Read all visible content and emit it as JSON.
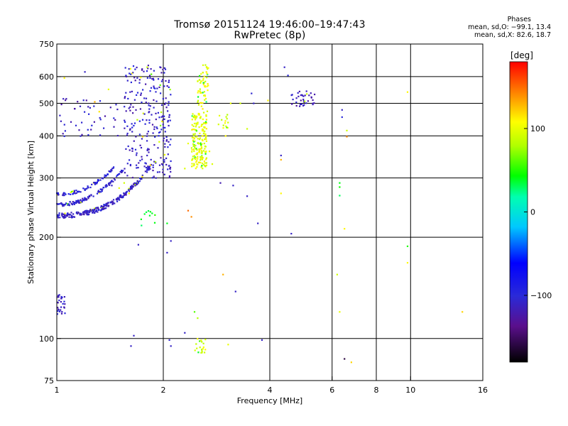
{
  "title": {
    "line1": "Tromsø 20151124 19:46:00–19:47:43",
    "line2": "RwPretec (8p)"
  },
  "phases": {
    "title": "Phases",
    "line_o": "mean, sd,O: −99.1, 13.4",
    "line_x": "mean, sd,X: 82.6, 18.7"
  },
  "colorbar": {
    "label": "[deg]",
    "ticks": [
      {
        "value": 100,
        "label": "100"
      },
      {
        "value": 0,
        "label": "0"
      },
      {
        "value": -100,
        "label": "−100"
      }
    ],
    "range": [
      -180,
      180
    ]
  },
  "chart_data": {
    "type": "scatter",
    "title": "Tromsø 20151124 19:46:00–19:47:43",
    "subtitle": "RwPretec (8p)",
    "xlabel": "Frequency [MHz]",
    "ylabel": "Stationary phase Virtual Height [km]",
    "x_scale": "log",
    "y_scale": "log",
    "xlim": [
      1,
      16
    ],
    "ylim": [
      75,
      750
    ],
    "x_ticks": [
      {
        "value": 1,
        "label": "1"
      },
      {
        "value": 2,
        "label": "2"
      },
      {
        "value": 4,
        "label": "4"
      },
      {
        "value": 6,
        "label": "6"
      },
      {
        "value": 8,
        "label": "8"
      },
      {
        "value": 10,
        "label": "10"
      },
      {
        "value": 16,
        "label": "16"
      }
    ],
    "y_ticks": [
      {
        "value": 75,
        "label": "75"
      },
      {
        "value": 100,
        "label": "100"
      },
      {
        "value": 200,
        "label": "200"
      },
      {
        "value": 300,
        "label": "300"
      },
      {
        "value": 400,
        "label": "400"
      },
      {
        "value": 500,
        "label": "500"
      },
      {
        "value": 600,
        "label": "600"
      },
      {
        "value": 750,
        "label": "750"
      }
    ],
    "x_gridlines": [
      2,
      4,
      6,
      8,
      10
    ],
    "y_gridlines": [
      100,
      200,
      300,
      400,
      500,
      600
    ],
    "grid": true,
    "color_axis": "phase [deg]",
    "clusters": [
      {
        "kind": "curve",
        "f_from": 1.0,
        "f_to": 1.85,
        "h_base": 232,
        "h_rise": 95,
        "exponent": 2.2,
        "phase": -110,
        "count": 260,
        "spread": 4
      },
      {
        "kind": "curve",
        "f_from": 1.0,
        "f_to": 1.55,
        "h_base": 250,
        "h_rise": 70,
        "exponent": 2.0,
        "phase": -105,
        "count": 110,
        "spread": 3
      },
      {
        "kind": "curve",
        "f_from": 1.0,
        "f_to": 1.45,
        "h_base": 268,
        "h_rise": 55,
        "exponent": 2.0,
        "phase": -100,
        "count": 80,
        "spread": 3
      },
      {
        "kind": "box",
        "f": [
          1.55,
          2.1
        ],
        "h": [
          300,
          650
        ],
        "phase": -110,
        "count": 260
      },
      {
        "kind": "box",
        "f": [
          1.02,
          1.5
        ],
        "h": [
          380,
          520
        ],
        "phase": -112,
        "count": 45
      },
      {
        "kind": "box",
        "f": [
          1.0,
          1.06
        ],
        "h": [
          118,
          135
        ],
        "phase": -110,
        "count": 30
      },
      {
        "kind": "box",
        "f": [
          2.4,
          2.65
        ],
        "h": [
          320,
          470
        ],
        "phase": 100,
        "count": 190
      },
      {
        "kind": "box",
        "f": [
          2.5,
          2.68
        ],
        "h": [
          470,
          650
        ],
        "phase": 100,
        "count": 60
      },
      {
        "kind": "box",
        "f": [
          2.85,
          3.05
        ],
        "h": [
          420,
          480
        ],
        "phase": 95,
        "count": 14
      },
      {
        "kind": "box",
        "f": [
          4.6,
          5.4
        ],
        "h": [
          490,
          545
        ],
        "phase": -115,
        "count": 40
      },
      {
        "kind": "box",
        "f": [
          2.45,
          2.65
        ],
        "h": [
          90,
          100
        ],
        "phase": 95,
        "count": 20
      },
      {
        "kind": "box",
        "f": [
          1.73,
          1.9
        ],
        "h": [
          215,
          240
        ],
        "phase": 40,
        "count": 10
      }
    ],
    "points": [
      {
        "f": 6.3,
        "h": 290,
        "phase": 40
      },
      {
        "f": 6.3,
        "h": 282,
        "phase": 45
      },
      {
        "f": 6.3,
        "h": 266,
        "phase": 30
      },
      {
        "f": 6.4,
        "h": 478,
        "phase": -110
      },
      {
        "f": 6.4,
        "h": 455,
        "phase": -100
      },
      {
        "f": 6.6,
        "h": 415,
        "phase": 90
      },
      {
        "f": 6.6,
        "h": 398,
        "phase": 140
      },
      {
        "f": 6.5,
        "h": 212,
        "phase": 110
      },
      {
        "f": 6.2,
        "h": 155,
        "phase": 90
      },
      {
        "f": 6.3,
        "h": 120,
        "phase": 100
      },
      {
        "f": 6.5,
        "h": 87,
        "phase": -160
      },
      {
        "f": 6.8,
        "h": 85,
        "phase": 120
      },
      {
        "f": 9.8,
        "h": 540,
        "phase": 110
      },
      {
        "f": 9.8,
        "h": 188,
        "phase": 50
      },
      {
        "f": 9.8,
        "h": 168,
        "phase": 110
      },
      {
        "f": 14.0,
        "h": 120,
        "phase": 120
      },
      {
        "f": 4.3,
        "h": 350,
        "phase": -110
      },
      {
        "f": 4.3,
        "h": 340,
        "phase": 130
      },
      {
        "f": 4.3,
        "h": 270,
        "phase": 110
      },
      {
        "f": 4.4,
        "h": 640,
        "phase": -110
      },
      {
        "f": 4.5,
        "h": 605,
        "phase": -100
      },
      {
        "f": 4.6,
        "h": 205,
        "phase": -110
      },
      {
        "f": 3.55,
        "h": 535,
        "phase": -105
      },
      {
        "f": 3.6,
        "h": 500,
        "phase": -110
      },
      {
        "f": 3.95,
        "h": 510,
        "phase": 110
      },
      {
        "f": 3.45,
        "h": 265,
        "phase": -110
      },
      {
        "f": 3.7,
        "h": 220,
        "phase": -110
      },
      {
        "f": 3.3,
        "h": 500,
        "phase": 90
      },
      {
        "f": 3.1,
        "h": 500,
        "phase": 100
      },
      {
        "f": 3.0,
        "h": 400,
        "phase": 110
      },
      {
        "f": 3.45,
        "h": 420,
        "phase": 90
      },
      {
        "f": 2.9,
        "h": 290,
        "phase": -120
      },
      {
        "f": 3.15,
        "h": 285,
        "phase": -110
      },
      {
        "f": 2.95,
        "h": 155,
        "phase": 130
      },
      {
        "f": 3.2,
        "h": 138,
        "phase": -110
      },
      {
        "f": 3.8,
        "h": 99,
        "phase": -110
      },
      {
        "f": 3.05,
        "h": 96,
        "phase": 100
      },
      {
        "f": 2.35,
        "h": 240,
        "phase": 150
      },
      {
        "f": 2.4,
        "h": 230,
        "phase": 140
      },
      {
        "f": 2.45,
        "h": 120,
        "phase": 60
      },
      {
        "f": 2.5,
        "h": 115,
        "phase": 80
      },
      {
        "f": 2.3,
        "h": 104,
        "phase": -110
      },
      {
        "f": 2.05,
        "h": 180,
        "phase": -110
      },
      {
        "f": 2.1,
        "h": 195,
        "phase": -110
      },
      {
        "f": 1.7,
        "h": 190,
        "phase": -110
      },
      {
        "f": 1.65,
        "h": 102,
        "phase": -110
      },
      {
        "f": 1.62,
        "h": 95,
        "phase": -110
      },
      {
        "f": 2.08,
        "h": 99,
        "phase": -105
      },
      {
        "f": 2.1,
        "h": 95,
        "phase": -110
      },
      {
        "f": 2.05,
        "h": 220,
        "phase": 40
      },
      {
        "f": 1.02,
        "h": 460,
        "phase": -110
      },
      {
        "f": 1.05,
        "h": 595,
        "phase": 110
      },
      {
        "f": 1.2,
        "h": 620,
        "phase": -110
      },
      {
        "f": 1.4,
        "h": 550,
        "phase": 100
      },
      {
        "f": 1.28,
        "h": 505,
        "phase": 130
      },
      {
        "f": 1.5,
        "h": 280,
        "phase": 100
      },
      {
        "f": 1.55,
        "h": 290,
        "phase": 90
      },
      {
        "f": 1.6,
        "h": 270,
        "phase": 110
      },
      {
        "f": 1.43,
        "h": 285,
        "phase": -110
      },
      {
        "f": 1.9,
        "h": 335,
        "phase": 80
      },
      {
        "f": 1.8,
        "h": 640,
        "phase": 90
      },
      {
        "f": 1.85,
        "h": 610,
        "phase": 60
      },
      {
        "f": 2.3,
        "h": 320,
        "phase": 95
      },
      {
        "f": 2.35,
        "h": 380,
        "phase": 100
      },
      {
        "f": 2.7,
        "h": 360,
        "phase": 100
      },
      {
        "f": 2.75,
        "h": 330,
        "phase": 95
      }
    ]
  }
}
